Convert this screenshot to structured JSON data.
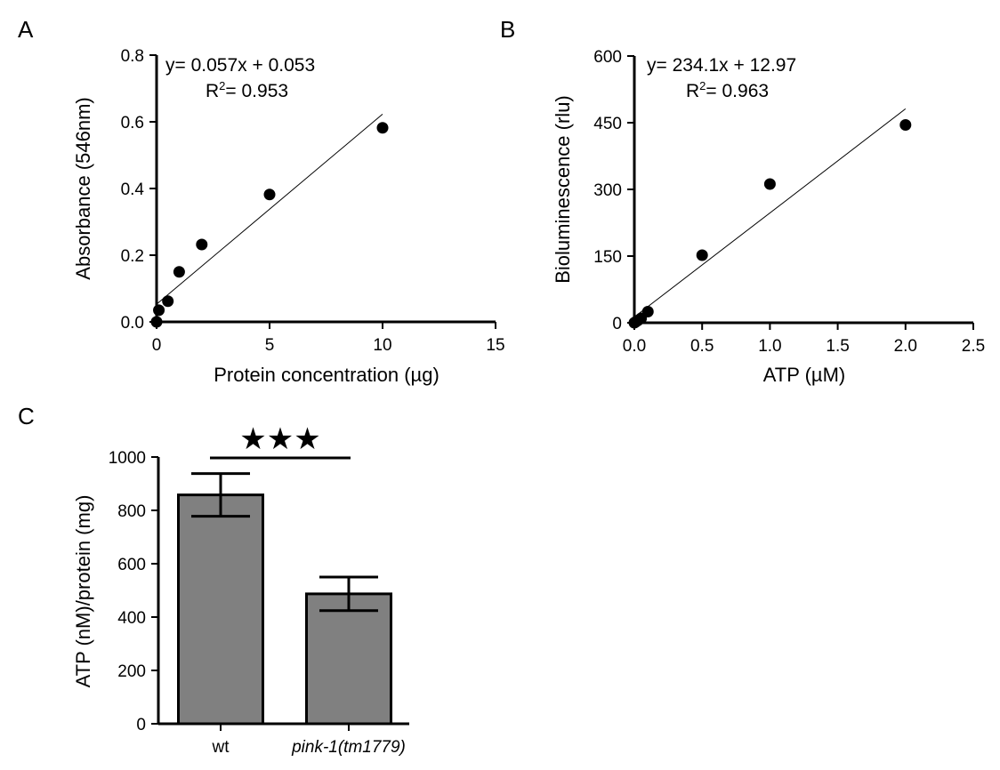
{
  "chart_data": [
    {
      "panel": "A",
      "type": "scatter",
      "xlabel": "Protein concentration (µg)",
      "ylabel": "Absorbance (546nm)",
      "xlim": [
        0,
        15
      ],
      "ylim": [
        0,
        0.8
      ],
      "xticks": [
        "0",
        "5",
        "10",
        "15"
      ],
      "yticks": [
        "0.0",
        "0.2",
        "0.4",
        "0.6",
        "0.8"
      ],
      "points": [
        {
          "x": 0,
          "y": 0.0
        },
        {
          "x": 0.1,
          "y": 0.035
        },
        {
          "x": 0.5,
          "y": 0.062
        },
        {
          "x": 1,
          "y": 0.15
        },
        {
          "x": 2,
          "y": 0.232
        },
        {
          "x": 5,
          "y": 0.382
        },
        {
          "x": 10,
          "y": 0.582
        }
      ],
      "fit": {
        "slope": 0.057,
        "intercept": 0.053,
        "x_range": [
          0,
          10
        ]
      },
      "equation": "y= 0.057x + 0.053",
      "r2_prefix": "R",
      "r2_sup": "2",
      "r2_value": "= 0.953"
    },
    {
      "panel": "B",
      "type": "scatter",
      "xlabel": "ATP (µM)",
      "ylabel": "Bioluminescence (rlu)",
      "xlim": [
        0,
        2.5
      ],
      "ylim": [
        0,
        600
      ],
      "xticks": [
        "0.0",
        "0.5",
        "1.0",
        "1.5",
        "2.0",
        "2.5"
      ],
      "yticks": [
        "0",
        "150",
        "300",
        "450",
        "600"
      ],
      "points": [
        {
          "x": 0,
          "y": 0
        },
        {
          "x": 0.01,
          "y": 2
        },
        {
          "x": 0.025,
          "y": 5
        },
        {
          "x": 0.05,
          "y": 10
        },
        {
          "x": 0.1,
          "y": 25
        },
        {
          "x": 0.5,
          "y": 152
        },
        {
          "x": 1,
          "y": 312
        },
        {
          "x": 2,
          "y": 445
        }
      ],
      "fit": {
        "slope": 234.1,
        "intercept": 12.97,
        "x_range": [
          0,
          2
        ]
      },
      "equation": "y= 234.1x + 12.97",
      "r2_prefix": "R",
      "r2_sup": "2",
      "r2_value": "= 0.963"
    },
    {
      "panel": "C",
      "type": "bar",
      "ylabel": "ATP (nM)/protein (mg)",
      "ylim": [
        0,
        1000
      ],
      "yticks": [
        "0",
        "200",
        "400",
        "600",
        "800",
        "1000"
      ],
      "categories": [
        "wt",
        "pink-1(tm1779)"
      ],
      "values": [
        858,
        487
      ],
      "errors": [
        80,
        63
      ],
      "significance": "★★★"
    }
  ]
}
